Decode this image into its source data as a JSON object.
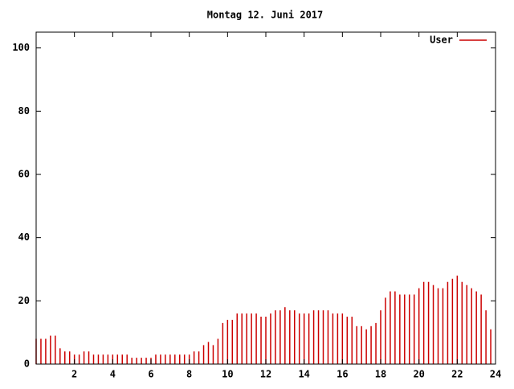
{
  "chart_data": {
    "type": "impulse",
    "title": "Montag 12. Juni 2017",
    "series": [
      {
        "name": "User",
        "color": "#cc0000",
        "x": [
          0,
          0.25,
          0.5,
          0.75,
          1,
          1.25,
          1.5,
          1.75,
          2,
          2.25,
          2.5,
          2.75,
          3,
          3.25,
          3.5,
          3.75,
          4,
          4.25,
          4.5,
          4.75,
          5,
          5.25,
          5.5,
          5.75,
          6,
          6.25,
          6.5,
          6.75,
          7,
          7.25,
          7.5,
          7.75,
          8,
          8.25,
          8.5,
          8.75,
          9,
          9.25,
          9.5,
          9.75,
          10,
          10.25,
          10.5,
          10.75,
          11,
          11.25,
          11.5,
          11.75,
          12,
          12.25,
          12.5,
          12.75,
          13,
          13.25,
          13.5,
          13.75,
          14,
          14.25,
          14.5,
          14.75,
          15,
          15.25,
          15.5,
          15.75,
          16,
          16.25,
          16.5,
          16.75,
          17,
          17.25,
          17.5,
          17.75,
          18,
          18.25,
          18.5,
          18.75,
          19,
          19.25,
          19.5,
          19.75,
          20,
          20.25,
          20.5,
          20.75,
          21,
          21.25,
          21.5,
          21.75,
          22,
          22.25,
          22.5,
          22.75,
          23,
          23.25,
          23.5,
          23.75
        ],
        "values": [
          8,
          8,
          8,
          9,
          9,
          5,
          4,
          4,
          3,
          3,
          4,
          4,
          3,
          3,
          3,
          3,
          3,
          3,
          3,
          3,
          2,
          2,
          2,
          2,
          2,
          3,
          3,
          3,
          3,
          3,
          3,
          3,
          3,
          4,
          4,
          6,
          7,
          6,
          8,
          13,
          14,
          14,
          16,
          16,
          16,
          16,
          16,
          15,
          15,
          16,
          17,
          17,
          18,
          17,
          17,
          16,
          16,
          16,
          17,
          17,
          17,
          17,
          16,
          16,
          16,
          15,
          15,
          12,
          12,
          11,
          12,
          13,
          17,
          21,
          23,
          23,
          22,
          22,
          22,
          22,
          24,
          26,
          26,
          25,
          24,
          24,
          26,
          27,
          28,
          26,
          25,
          24,
          23,
          22,
          17,
          11
        ]
      }
    ],
    "xlim": [
      0,
      24
    ],
    "xticks": [
      2,
      4,
      6,
      8,
      10,
      12,
      14,
      16,
      18,
      20,
      22,
      24
    ],
    "ylim": [
      0,
      105
    ],
    "yticks": [
      0,
      20,
      40,
      60,
      80,
      100
    ]
  }
}
